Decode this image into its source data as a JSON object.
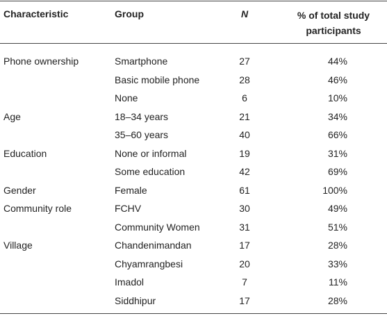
{
  "table": {
    "headers": [
      "Characteristic",
      "Group",
      "N",
      "% of total study participants"
    ],
    "groups": [
      {
        "characteristic": "Phone ownership",
        "rows": [
          [
            "Smartphone",
            "27",
            "44%"
          ],
          [
            "Basic mobile phone",
            "28",
            "46%"
          ],
          [
            "None",
            "6",
            "10%"
          ]
        ]
      },
      {
        "characteristic": "Age",
        "rows": [
          [
            "18–34 years",
            "21",
            "34%"
          ],
          [
            "35–60 years",
            "40",
            "66%"
          ]
        ]
      },
      {
        "characteristic": "Education",
        "rows": [
          [
            "None or informal",
            "19",
            "31%"
          ],
          [
            "Some education",
            "42",
            "69%"
          ]
        ]
      },
      {
        "characteristic": "Gender",
        "rows": [
          [
            "Female",
            "61",
            "100%"
          ]
        ]
      },
      {
        "characteristic": "Community role",
        "rows": [
          [
            "FCHV",
            "30",
            "49%"
          ],
          [
            "Community Women",
            "31",
            "51%"
          ]
        ]
      },
      {
        "characteristic": "Village",
        "rows": [
          [
            "Chandenimandan",
            "17",
            "28%"
          ],
          [
            "Chyamrangbesi",
            "20",
            "33%"
          ],
          [
            "Imadol",
            "7",
            "11%"
          ],
          [
            "Siddhipur",
            "17",
            "28%"
          ]
        ]
      }
    ]
  }
}
